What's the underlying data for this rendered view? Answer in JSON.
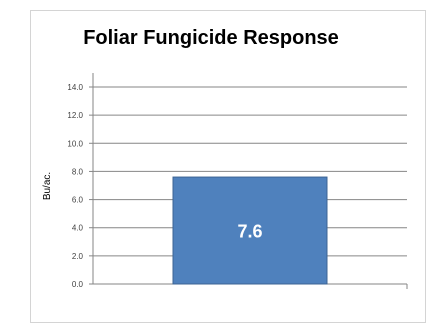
{
  "chart_data": {
    "type": "bar",
    "title": "Foliar Fungicide Response",
    "xlabel": "",
    "ylabel": "Bu/ac.",
    "categories": [
      ""
    ],
    "values": [
      7.6
    ],
    "value_labels": [
      "7.6"
    ],
    "ylim": [
      0,
      14
    ],
    "yticks": [
      "0.0",
      "2.0",
      "4.0",
      "6.0",
      "8.0",
      "10.0",
      "12.0",
      "14.0"
    ],
    "grid": true,
    "legend": "none",
    "bar_color": "#4f81bd"
  }
}
